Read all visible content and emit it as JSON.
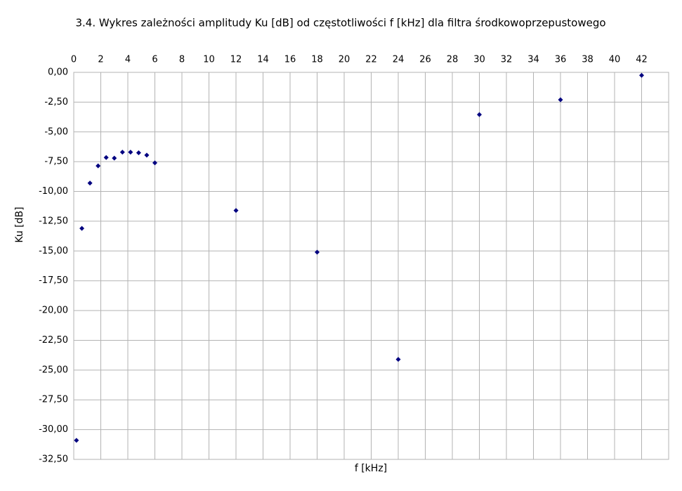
{
  "chart_data": {
    "type": "scatter",
    "title": "3.4. Wykres zależności amplitudy Ku [dB] od częstotliwości f [kHz] dla filtra środkowoprzepustowego",
    "x_label": "f [kHz]",
    "y_label": "Ku [dB]",
    "x_axis_position": "top",
    "grid": true,
    "marker": "diamond",
    "series": [
      {
        "color": "#000080",
        "x": [
          0.2,
          0.6,
          1.2,
          1.8,
          2.4,
          3.0,
          3.6,
          4.2,
          4.8,
          5.4,
          6,
          12,
          18,
          24,
          30,
          36,
          42
        ],
        "values": [
          -30.9,
          -13.1,
          -9.3,
          -7.85,
          -7.15,
          -7.2,
          -6.7,
          -6.7,
          -6.75,
          -6.95,
          -7.6,
          -11.6,
          -15.1,
          -24.1,
          -3.55,
          -2.3,
          -0.25
        ]
      }
    ],
    "xlim": [
      0,
      44
    ],
    "xticks": [
      0,
      2,
      4,
      6,
      8,
      10,
      12,
      14,
      16,
      18,
      20,
      22,
      24,
      26,
      28,
      30,
      32,
      34,
      36,
      38,
      40,
      42
    ],
    "ylim": [
      -32.5,
      0
    ],
    "yticks": [
      {
        "value": 0,
        "label": "0,00"
      },
      {
        "value": -2.5,
        "label": "-2,50"
      },
      {
        "value": -5,
        "label": "-5,00"
      },
      {
        "value": -7.5,
        "label": "-7,50"
      },
      {
        "value": -10,
        "label": "-10,00"
      },
      {
        "value": -12.5,
        "label": "-12,50"
      },
      {
        "value": -15,
        "label": "-15,00"
      },
      {
        "value": -17.5,
        "label": "-17,50"
      },
      {
        "value": -20,
        "label": "-20,00"
      },
      {
        "value": -22.5,
        "label": "-22,50"
      },
      {
        "value": -25,
        "label": "-25,00"
      },
      {
        "value": -27.5,
        "label": "-27,50"
      },
      {
        "value": -30,
        "label": "-30,00"
      },
      {
        "value": -32.5,
        "label": "-32,50"
      }
    ]
  }
}
